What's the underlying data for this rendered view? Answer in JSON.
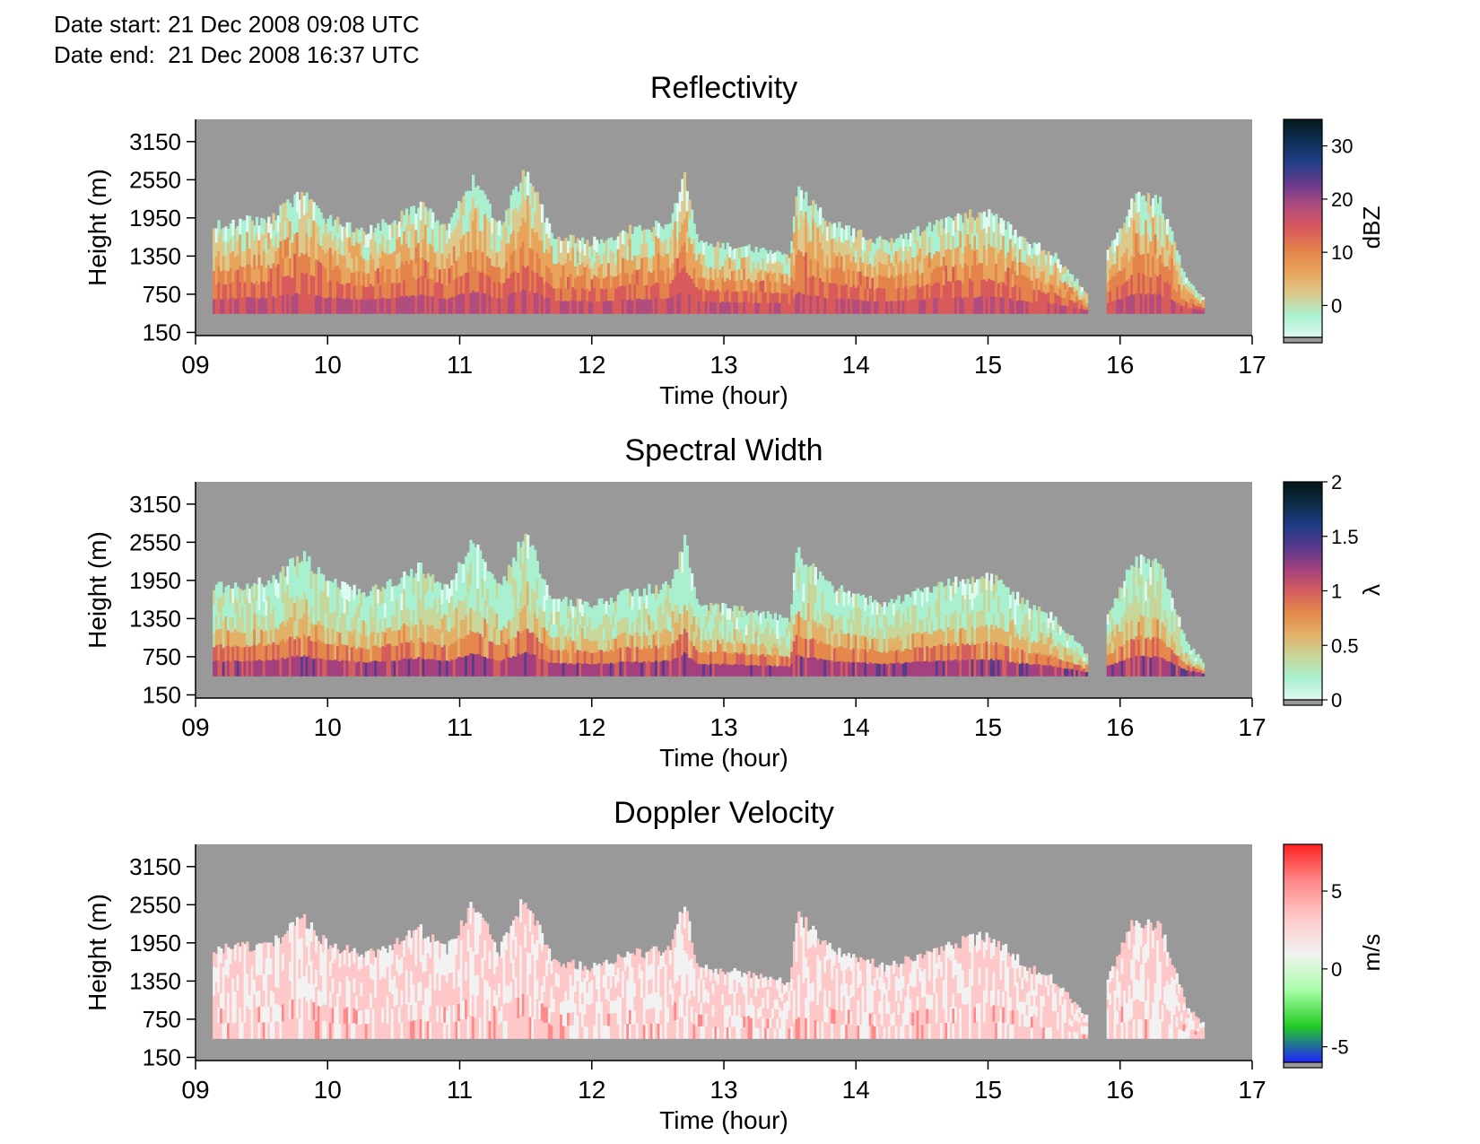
{
  "header": {
    "date_start": "Date start: 21 Dec 2008 09:08 UTC",
    "date_end": "Date end:  21 Dec 2008 16:37 UTC"
  },
  "colors": {
    "nodata": "#999999",
    "reflectivity_scale": [
      "#dffaf0",
      "#a8f0cf",
      "#dcc98c",
      "#e8a45a",
      "#e4824c",
      "#d95a5a",
      "#b14c7e",
      "#6b3b8c",
      "#234089",
      "#0e2f55",
      "#061a1e"
    ],
    "spectral_width_scale": [
      "#dffaf0",
      "#a8f0cf",
      "#c8d69a",
      "#e2b167",
      "#e4884b",
      "#d45d5e",
      "#a4407e",
      "#583a8c",
      "#1e3c86",
      "#0b2b45",
      "#041614"
    ],
    "doppler_scale": [
      "#2222ff",
      "#22cc22",
      "#aaffaa",
      "#f2f2f2",
      "#ffc8c8",
      "#ff8888",
      "#ff2222"
    ]
  },
  "chart_data": [
    {
      "type": "heatmap",
      "title": "Reflectivity",
      "xlabel": "Time (hour)",
      "ylabel": "Height (m)",
      "x_ticks": [
        "09",
        "10",
        "11",
        "12",
        "13",
        "14",
        "15",
        "16",
        "17"
      ],
      "xlim": [
        9,
        17
      ],
      "y_ticks": [
        "150",
        "750",
        "1350",
        "1950",
        "2550",
        "3150"
      ],
      "ylim": [
        100,
        3500
      ],
      "colorbar": {
        "label": "dBZ",
        "ticks": [
          "0",
          "10",
          "20",
          "30"
        ],
        "range": [
          -6,
          35
        ]
      },
      "data_window": {
        "start_hour": 9.13,
        "end_hour": 16.62,
        "min_height_m": 450
      },
      "cloud_top_profile": [
        [
          9.0,
          1850
        ],
        [
          9.3,
          1900
        ],
        [
          9.6,
          2000
        ],
        [
          9.8,
          2400
        ],
        [
          10.0,
          1950
        ],
        [
          10.3,
          1800
        ],
        [
          10.5,
          1950
        ],
        [
          10.7,
          2200
        ],
        [
          10.9,
          1850
        ],
        [
          11.1,
          2600
        ],
        [
          11.3,
          1850
        ],
        [
          11.5,
          2750
        ],
        [
          11.7,
          1700
        ],
        [
          12.0,
          1600
        ],
        [
          12.3,
          1800
        ],
        [
          12.6,
          1900
        ],
        [
          12.7,
          2650
        ],
        [
          12.8,
          1600
        ],
        [
          13.2,
          1500
        ],
        [
          13.5,
          1350
        ],
        [
          13.55,
          2450
        ],
        [
          13.8,
          1900
        ],
        [
          14.2,
          1600
        ],
        [
          14.5,
          1800
        ],
        [
          14.8,
          2000
        ],
        [
          15.0,
          2100
        ],
        [
          15.3,
          1600
        ],
        [
          15.5,
          1400
        ],
        [
          15.75,
          800
        ],
        [
          15.9,
          1400
        ],
        [
          16.1,
          2300
        ],
        [
          16.3,
          2300
        ],
        [
          16.5,
          1000
        ],
        [
          16.62,
          700
        ]
      ],
      "gap_intervals_hour": [
        [
          15.75,
          15.9
        ]
      ]
    },
    {
      "type": "heatmap",
      "title": "Spectral Width",
      "xlabel": "Time (hour)",
      "ylabel": "Height (m)",
      "x_ticks": [
        "09",
        "10",
        "11",
        "12",
        "13",
        "14",
        "15",
        "16",
        "17"
      ],
      "xlim": [
        9,
        17
      ],
      "y_ticks": [
        "150",
        "750",
        "1350",
        "1950",
        "2550",
        "3150"
      ],
      "ylim": [
        100,
        3500
      ],
      "colorbar": {
        "label": "λ",
        "ticks": [
          "0",
          "0.5",
          "1",
          "1.5",
          "2"
        ],
        "range": [
          0,
          2
        ]
      },
      "data_window": {
        "start_hour": 9.13,
        "end_hour": 16.62,
        "min_height_m": 450
      },
      "cloud_top_profile": [
        [
          9.0,
          1850
        ],
        [
          9.3,
          1900
        ],
        [
          9.6,
          2000
        ],
        [
          9.8,
          2400
        ],
        [
          10.0,
          1950
        ],
        [
          10.3,
          1800
        ],
        [
          10.5,
          1950
        ],
        [
          10.7,
          2200
        ],
        [
          10.9,
          1850
        ],
        [
          11.1,
          2600
        ],
        [
          11.3,
          1850
        ],
        [
          11.5,
          2750
        ],
        [
          11.7,
          1700
        ],
        [
          12.0,
          1600
        ],
        [
          12.3,
          1800
        ],
        [
          12.6,
          1900
        ],
        [
          12.7,
          2650
        ],
        [
          12.8,
          1600
        ],
        [
          13.2,
          1500
        ],
        [
          13.5,
          1350
        ],
        [
          13.55,
          2450
        ],
        [
          13.8,
          1900
        ],
        [
          14.2,
          1600
        ],
        [
          14.5,
          1800
        ],
        [
          14.8,
          2000
        ],
        [
          15.0,
          2100
        ],
        [
          15.3,
          1600
        ],
        [
          15.5,
          1400
        ],
        [
          15.75,
          800
        ],
        [
          15.9,
          1400
        ],
        [
          16.1,
          2300
        ],
        [
          16.3,
          2300
        ],
        [
          16.5,
          1000
        ],
        [
          16.62,
          700
        ]
      ],
      "gap_intervals_hour": [
        [
          15.75,
          15.9
        ]
      ]
    },
    {
      "type": "heatmap",
      "title": "Doppler Velocity",
      "xlabel": "Time (hour)",
      "ylabel": "Height (m)",
      "x_ticks": [
        "09",
        "10",
        "11",
        "12",
        "13",
        "14",
        "15",
        "16",
        "17"
      ],
      "xlim": [
        9,
        17
      ],
      "y_ticks": [
        "150",
        "750",
        "1350",
        "1950",
        "2550",
        "3150"
      ],
      "ylim": [
        100,
        3500
      ],
      "colorbar": {
        "label": "m/s",
        "ticks": [
          "-5",
          "0",
          "5"
        ],
        "range": [
          -6,
          8
        ]
      },
      "data_window": {
        "start_hour": 9.13,
        "end_hour": 16.62,
        "min_height_m": 450
      },
      "cloud_top_profile": [
        [
          9.0,
          1850
        ],
        [
          9.3,
          1900
        ],
        [
          9.6,
          2000
        ],
        [
          9.8,
          2400
        ],
        [
          10.0,
          1950
        ],
        [
          10.3,
          1800
        ],
        [
          10.5,
          1950
        ],
        [
          10.7,
          2200
        ],
        [
          10.9,
          1850
        ],
        [
          11.1,
          2600
        ],
        [
          11.3,
          1850
        ],
        [
          11.5,
          2750
        ],
        [
          11.7,
          1700
        ],
        [
          12.0,
          1600
        ],
        [
          12.3,
          1800
        ],
        [
          12.6,
          1900
        ],
        [
          12.7,
          2650
        ],
        [
          12.8,
          1600
        ],
        [
          13.2,
          1500
        ],
        [
          13.5,
          1350
        ],
        [
          13.55,
          2450
        ],
        [
          13.8,
          1900
        ],
        [
          14.2,
          1600
        ],
        [
          14.5,
          1800
        ],
        [
          14.8,
          2000
        ],
        [
          15.0,
          2100
        ],
        [
          15.3,
          1600
        ],
        [
          15.5,
          1400
        ],
        [
          15.75,
          800
        ],
        [
          15.9,
          1400
        ],
        [
          16.1,
          2300
        ],
        [
          16.3,
          2300
        ],
        [
          16.5,
          1000
        ],
        [
          16.62,
          700
        ]
      ],
      "gap_intervals_hour": [
        [
          15.75,
          15.9
        ]
      ]
    }
  ]
}
